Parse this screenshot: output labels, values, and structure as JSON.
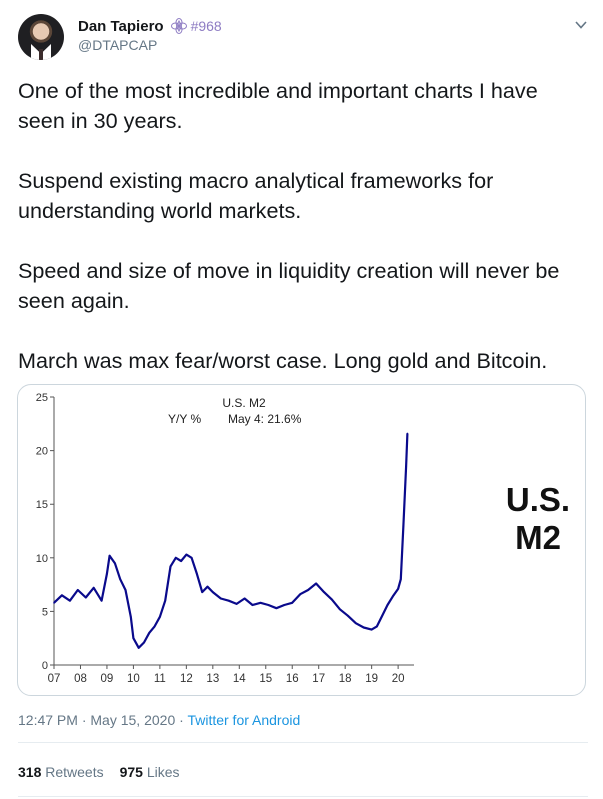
{
  "author": {
    "name": "Dan Tapiero",
    "handle": "@DTAPCAP",
    "tag": "#968",
    "badge_icon": "ethereum-flower-icon",
    "menu_icon": "chevron-down-icon"
  },
  "tweet": {
    "paragraphs": [
      "One of the most incredible and important charts I have seen in 30 years.",
      "Suspend existing macro analytical frameworks for understanding world markets.",
      "Speed and size of move in liquidity creation will never be seen again.",
      "March was max fear/worst case. Long gold and Bitcoin."
    ]
  },
  "chart_data": {
    "type": "line",
    "title": "U.S. M2",
    "subtitle_left": "Y/Y %",
    "subtitle_right": "May 4: 21.6%",
    "side_label_line1": "U.S.",
    "side_label_line2": "M2",
    "series_color": "#0a0a8c",
    "ylim": [
      0,
      25
    ],
    "yticks": [
      "0",
      "5",
      "10",
      "15",
      "20",
      "25"
    ],
    "xticks": [
      "07",
      "08",
      "09",
      "10",
      "11",
      "12",
      "13",
      "14",
      "15",
      "16",
      "17",
      "18",
      "19",
      "20"
    ],
    "x": [
      2007.0,
      2007.3,
      2007.6,
      2007.9,
      2008.2,
      2008.5,
      2008.8,
      2009.0,
      2009.1,
      2009.3,
      2009.5,
      2009.7,
      2009.9,
      2010.0,
      2010.2,
      2010.4,
      2010.6,
      2010.8,
      2011.0,
      2011.2,
      2011.4,
      2011.6,
      2011.8,
      2012.0,
      2012.2,
      2012.4,
      2012.6,
      2012.8,
      2013.0,
      2013.3,
      2013.6,
      2013.9,
      2014.2,
      2014.5,
      2014.8,
      2015.1,
      2015.4,
      2015.7,
      2016.0,
      2016.3,
      2016.6,
      2016.9,
      2017.2,
      2017.5,
      2017.8,
      2018.1,
      2018.4,
      2018.7,
      2019.0,
      2019.2,
      2019.4,
      2019.6,
      2019.8,
      2020.0,
      2020.1,
      2020.2,
      2020.3,
      2020.35
    ],
    "values": [
      5.8,
      6.5,
      6.0,
      7.0,
      6.3,
      7.2,
      6.0,
      8.5,
      10.2,
      9.5,
      8.0,
      7.0,
      4.5,
      2.5,
      1.6,
      2.1,
      3.0,
      3.6,
      4.5,
      6.0,
      9.2,
      10.0,
      9.7,
      10.3,
      10.0,
      8.5,
      6.8,
      7.3,
      6.8,
      6.2,
      6.0,
      5.7,
      6.2,
      5.6,
      5.8,
      5.6,
      5.3,
      5.6,
      5.8,
      6.6,
      7.0,
      7.6,
      6.8,
      6.1,
      5.2,
      4.6,
      3.9,
      3.5,
      3.3,
      3.6,
      4.6,
      5.6,
      6.4,
      7.1,
      8.0,
      13.0,
      18.5,
      21.6
    ]
  },
  "meta": {
    "time": "12:47 PM",
    "sep": " · ",
    "date": "May 15, 2020",
    "sep2": " · ",
    "source": "Twitter for Android"
  },
  "stats": {
    "retweets_count": "318",
    "retweets_label": "Retweets",
    "likes_count": "975",
    "likes_label": "Likes"
  }
}
